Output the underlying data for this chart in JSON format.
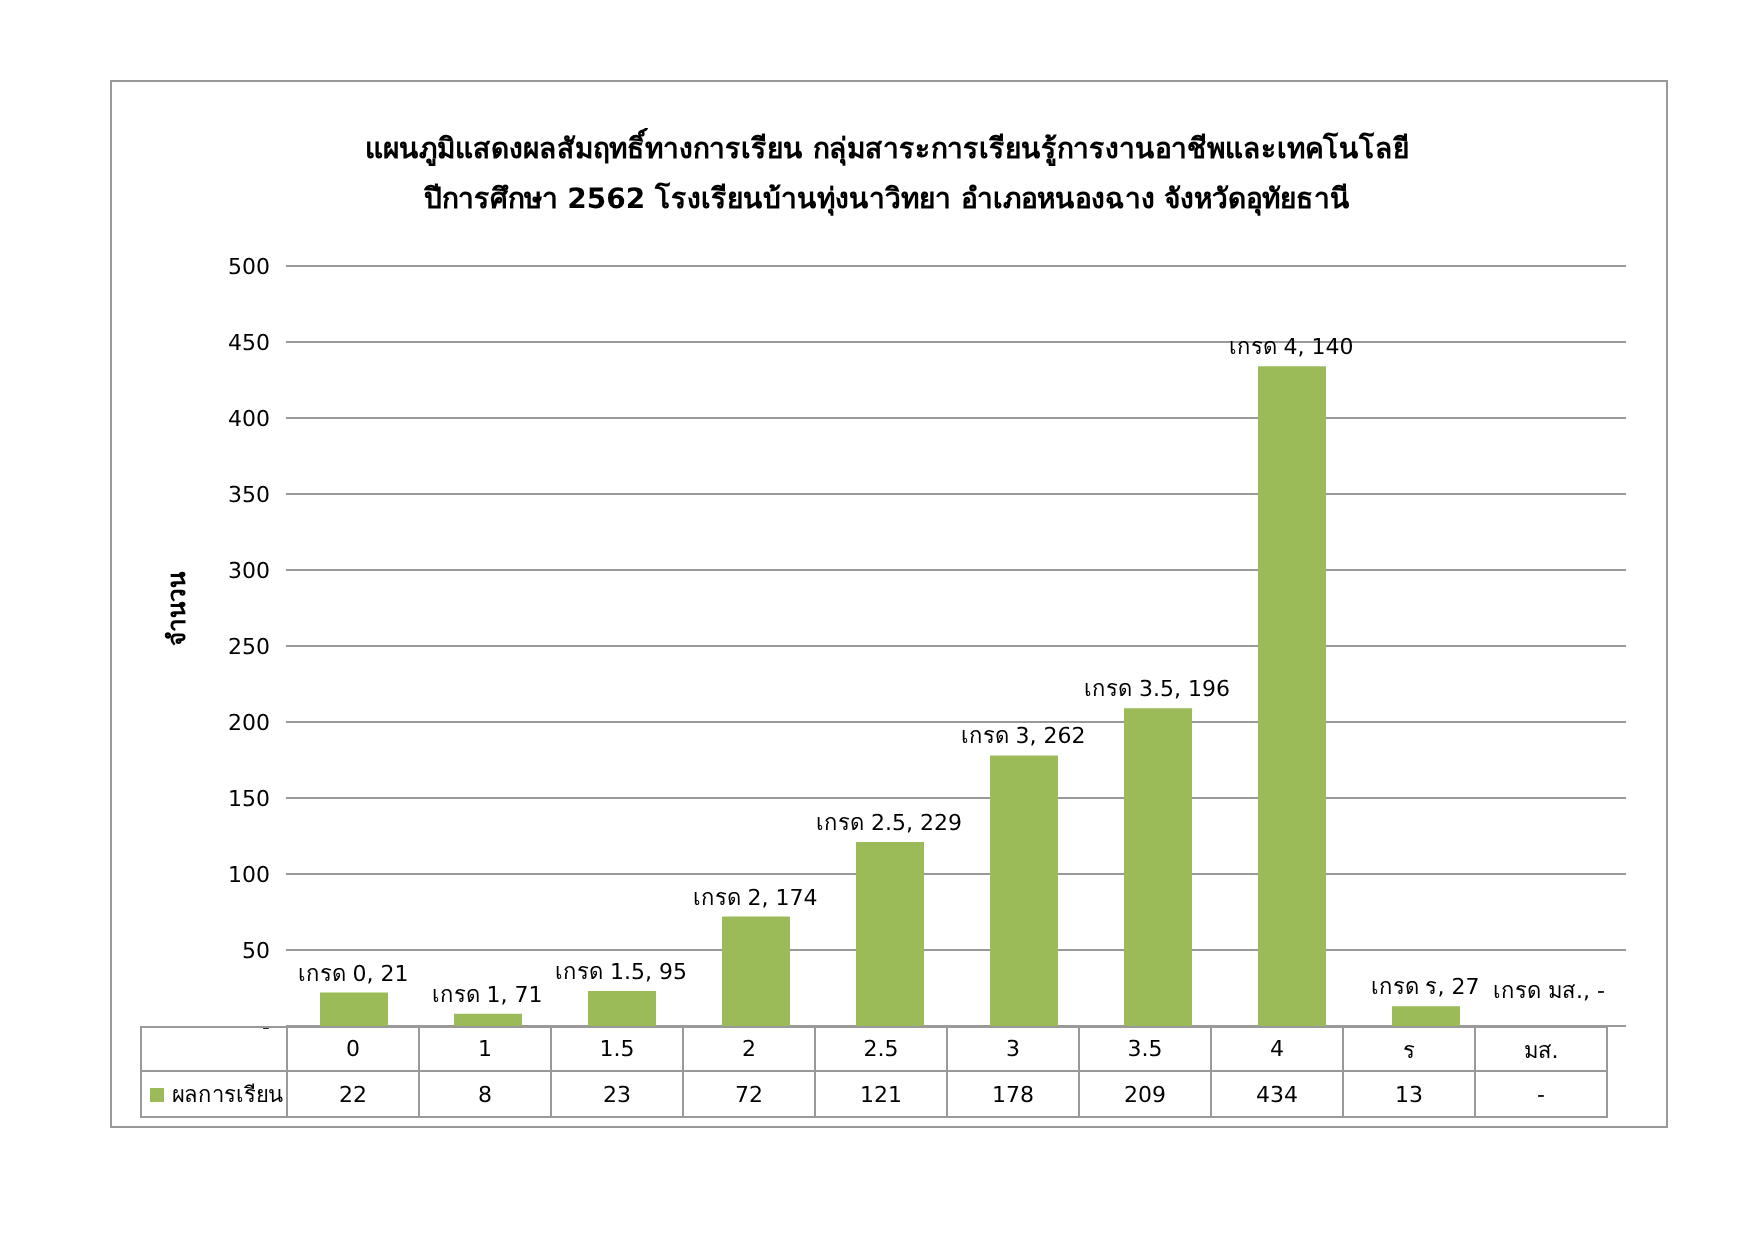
{
  "chart_data": {
    "type": "bar",
    "title": "แผนภูมิแสดงผลสัมฤทธิ์ทางการเรียน กลุ่มสาระการเรียนรู้การงานอาชีพและเทคโนโลยี\nปีการศึกษา 2562  โรงเรียนบ้านทุ่งนาวิทยา อำเภอหนองฉาง จังหวัดอุทัยธานี",
    "ylabel": "จำนวน",
    "categories": [
      "0",
      "1",
      "1.5",
      "2",
      "2.5",
      "3",
      "3.5",
      "4",
      "ร",
      "มส."
    ],
    "series": [
      {
        "name": "ผลการเรียน",
        "color": "#9bbb59",
        "values": [
          22,
          8,
          23,
          72,
          121,
          178,
          209,
          434,
          13,
          null
        ],
        "value_labels": [
          "22",
          "8",
          "23",
          "72",
          "121",
          "178",
          "209",
          "434",
          "13",
          "-"
        ]
      }
    ],
    "ylim": [
      0,
      500
    ],
    "yticks": [
      {
        "value": 0,
        "label": "-"
      },
      50,
      100,
      150,
      200,
      250,
      300,
      350,
      400,
      450,
      500
    ],
    "grid": "y",
    "legend": "bottom",
    "annotations": [
      {
        "text": "เกรด 0,  21",
        "x": "0",
        "y": 22
      },
      {
        "text": "เกรด 1,  71",
        "x": "1",
        "y": 8
      },
      {
        "text": "เกรด 1.5,  95",
        "x": "1.5",
        "y": 23
      },
      {
        "text": "เกรด 2,  174",
        "x": "2",
        "y": 72
      },
      {
        "text": "เกรด 2.5,  229",
        "x": "2.5",
        "y": 121
      },
      {
        "text": "เกรด 3,  262",
        "x": "3",
        "y": 178
      },
      {
        "text": "เกรด 3.5,  196",
        "x": "3.5",
        "y": 209
      },
      {
        "text": "เกรด 4,  140",
        "x": "4",
        "y": 434
      },
      {
        "text": "เกรด ร,  27",
        "x": "ร",
        "y": 13
      },
      "เกรด มส.,  -"
    ]
  }
}
